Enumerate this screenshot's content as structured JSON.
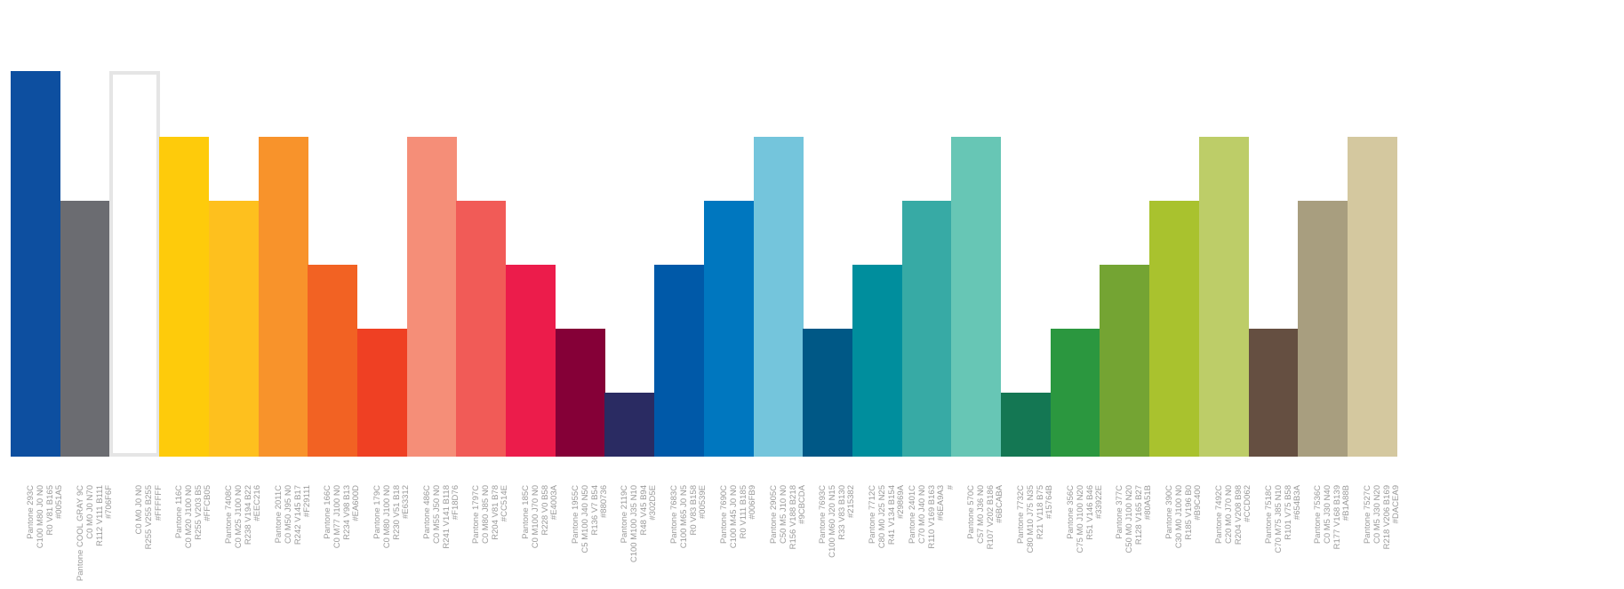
{
  "swatches": [
    {
      "lines": [
        "Pantone 293C",
        "C100 M80 J0 N0",
        "R0 V81 B165",
        "#0051A5"
      ],
      "color": "#0D4FA0",
      "level": 6
    },
    {
      "lines": [
        "Pantone COOL GRAY 9C",
        "C0 M0 J0 N70",
        "R112 V111 B111",
        "#706F6F"
      ],
      "color": "#6B6C71",
      "level": 4
    },
    {
      "lines": [
        "C0 M0 J0 N0",
        "R255 V255 B255",
        "#FFFFFF"
      ],
      "color": "#FFFFFF",
      "level": 6,
      "outlined": true
    },
    {
      "lines": [
        "Pantone 116C",
        "C0 M20 J100 N0",
        "R255 V203 B5",
        "#FFCB05"
      ],
      "color": "#FECB0B",
      "level": 5
    },
    {
      "lines": [
        "Pantone 7408C",
        "C0 M25 J100 N0",
        "R238 V194 B22",
        "#EEC216"
      ],
      "color": "#FEC01E",
      "level": 4
    },
    {
      "lines": [
        "Pantone 2011C",
        "C0 M50 J95 N0",
        "R242 V145 B17",
        "#F29111"
      ],
      "color": "#F8932B",
      "level": 5
    },
    {
      "lines": [
        "Pantone 166C",
        "C0 M77 J100 N0",
        "R234 V98 B13",
        "#EA600D"
      ],
      "color": "#F26223",
      "level": 3
    },
    {
      "lines": [
        "Pantone 179C",
        "C0 M80 J100 N0",
        "R230 V51 B18",
        "#E63312"
      ],
      "color": "#EF4023",
      "level": 2
    },
    {
      "lines": [
        "Pantone 486C",
        "C0 M55 J50 N0",
        "R241 V141 B118",
        "#F18D76"
      ],
      "color": "#F58E78",
      "level": 5
    },
    {
      "lines": [
        "Pantone 1797C",
        "C0 M80 J85 N0",
        "R204 V81 B78",
        "#CC514E"
      ],
      "color": "#F15B57",
      "level": 4
    },
    {
      "lines": [
        "Pantone 185C",
        "C0 M100 J70 N0",
        "R228 V0 B58",
        "#E4003A"
      ],
      "color": "#EC1C4B",
      "level": 3
    },
    {
      "lines": [
        "Pantone 1955C",
        "C5 M100 J40 N50",
        "R136 V7 B54",
        "#880736"
      ],
      "color": "#850037",
      "level": 2
    },
    {
      "lines": [
        "Pantone 2119C",
        "C100 M100 J35 N10",
        "R48 V45 B94",
        "#302D5E"
      ],
      "color": "#2A2B62",
      "level": 1
    },
    {
      "lines": [
        "Pantone 7683C",
        "C100 M65 J0 N5",
        "R0 V83 B158",
        "#00539E"
      ],
      "color": "#0059A8",
      "level": 3
    },
    {
      "lines": [
        "Pantone 7690C",
        "C100 M45 J0 N0",
        "R0 V111 B185",
        "#006FB9"
      ],
      "color": "#0077BF",
      "level": 4
    },
    {
      "lines": [
        "Pantone 2905C",
        "C50 M5 J10 N0",
        "R156 V188 B218",
        "#9CBCDA"
      ],
      "color": "#74C5DC",
      "level": 5
    },
    {
      "lines": [
        "Pantone 7693C",
        "C100 M60 J20 N15",
        "R33 V83 B130",
        "#215382"
      ],
      "color": "#005886",
      "level": 2
    },
    {
      "lines": [
        "Pantone 7712C",
        "C80 M0 J25 N25",
        "R41 V134 B154",
        "#29869A"
      ],
      "color": "#008E9D",
      "level": 3
    },
    {
      "lines": [
        "Pantone 2401C",
        "C70 M0 J40 N0",
        "R110 V169 B163",
        "#6EA9A3",
        "#"
      ],
      "color": "#37AAA5",
      "level": 4
    },
    {
      "lines": [
        "Pantone 570C",
        "C57 M0 J36 N0",
        "R107 V202 B186",
        "#6BCABA"
      ],
      "color": "#67C6B5",
      "level": 5
    },
    {
      "lines": [
        "Pantone 7732C",
        "C80 M10 J75 N35",
        "R21 V118 B75",
        "#15764B"
      ],
      "color": "#147753",
      "level": 1
    },
    {
      "lines": [
        "Pantone 356C",
        "C75 M0 J100 N20",
        "R51 V146 B46",
        "#33922E"
      ],
      "color": "#2B973F",
      "level": 2
    },
    {
      "lines": [
        "Pantone 377C",
        "C50 M0 J100 N20",
        "R128 V165 B27",
        "#80A51B"
      ],
      "color": "#74A433",
      "level": 3
    },
    {
      "lines": [
        "Pantone 390C",
        "C30 M0 J100 N0",
        "R185 V196 B0",
        "#B9C400"
      ],
      "color": "#A9C22E",
      "level": 4
    },
    {
      "lines": [
        "Pantone 7492C",
        "C20 M0 J70 N0",
        "R204 V208 B98",
        "#CCD062"
      ],
      "color": "#BDCD68",
      "level": 5
    },
    {
      "lines": [
        "Pantone 7518C",
        "C70 M75 J85 N10",
        "R101 V75 B58",
        "#654B3A"
      ],
      "color": "#654F41",
      "level": 2
    },
    {
      "lines": [
        "Pantone 7536C",
        "C0 M5 J30 N40",
        "R177 V168 B139",
        "#B1A88B"
      ],
      "color": "#A89E7F",
      "level": 4
    },
    {
      "lines": [
        "Pantone 7527C",
        "C0 M5 J30 N20",
        "R218 V206 B169",
        "#DACEA9"
      ],
      "color": "#D4C89F",
      "level": 5
    }
  ]
}
